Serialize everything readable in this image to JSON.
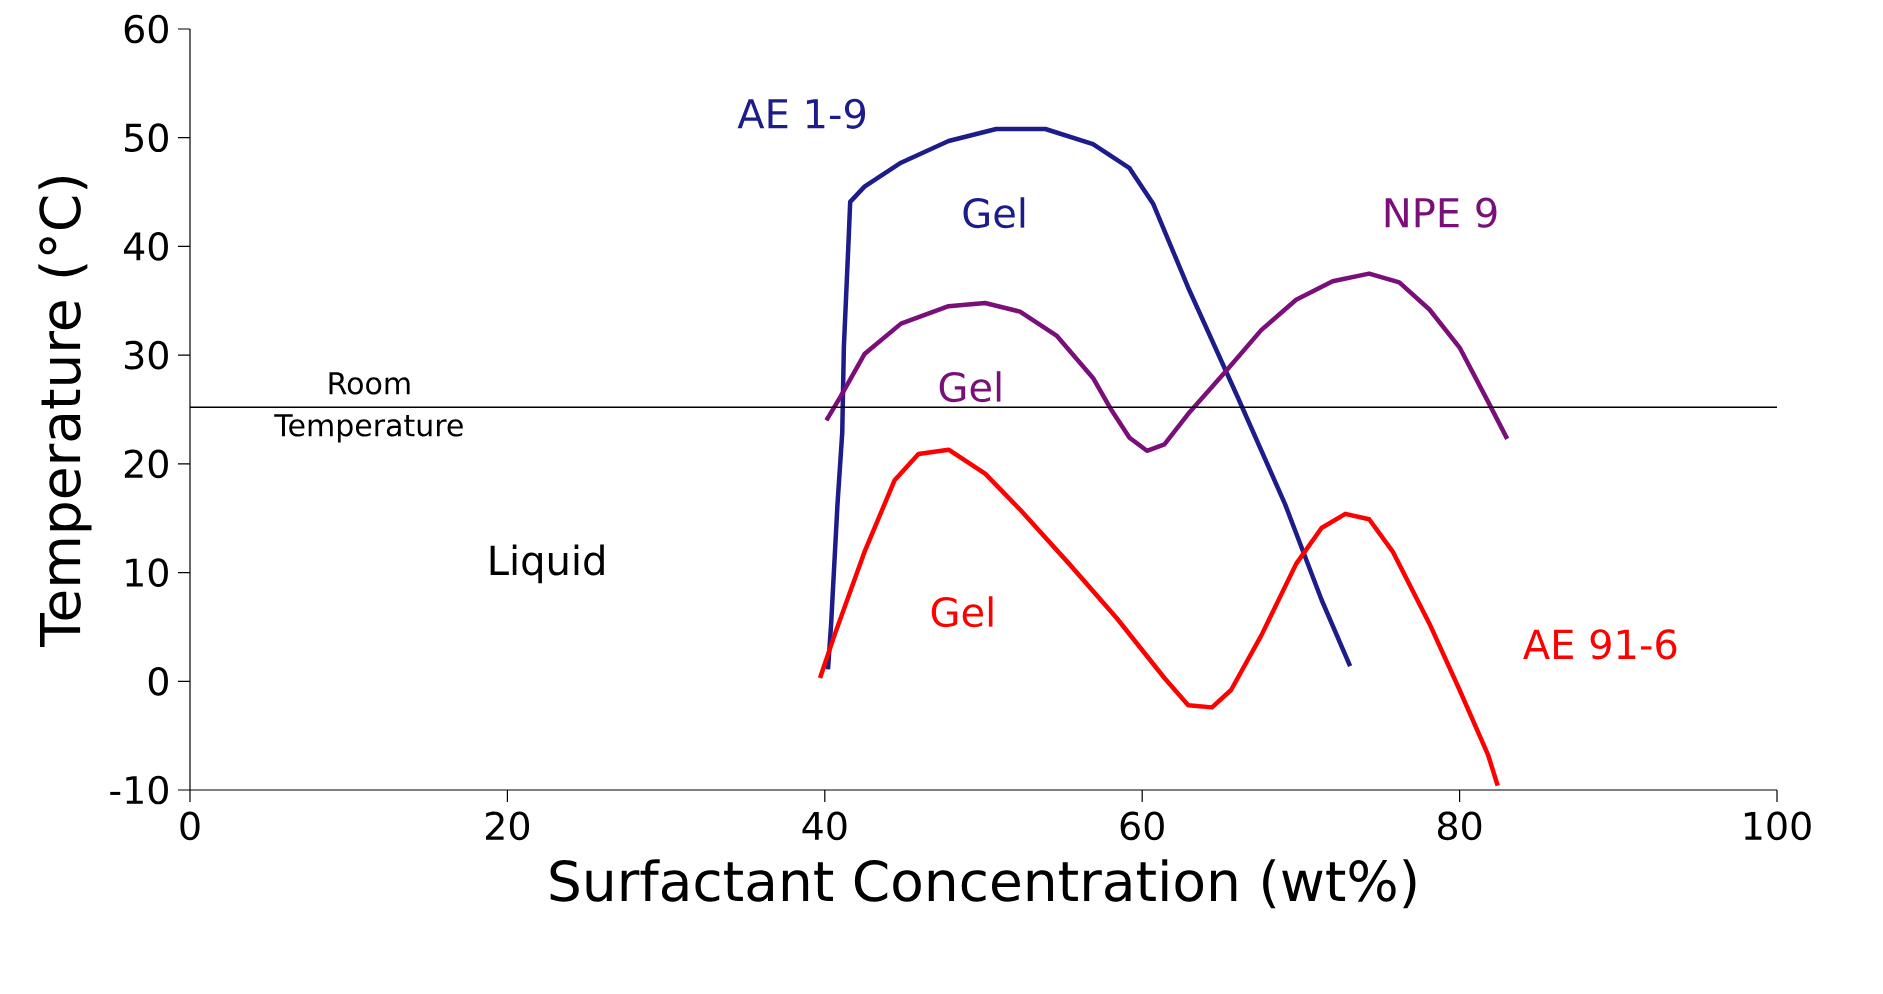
{
  "chart_data": {
    "type": "line",
    "xlabel": "Surfactant Concentration (wt%)",
    "ylabel": "Temperature (°C)",
    "xlim": [
      0,
      100
    ],
    "ylim": [
      -10,
      60
    ],
    "xticks": [
      0,
      20,
      40,
      60,
      80,
      100
    ],
    "yticks": [
      -10,
      0,
      10,
      20,
      30,
      40,
      50,
      60
    ],
    "grid": false,
    "marker": "none",
    "line_style": "solid",
    "series": [
      {
        "name": "AE 1-9",
        "color": "#1c1c8a",
        "x": [
          40.2,
          40.4,
          40.8,
          41.1,
          41.2,
          41.5,
          41.6,
          42.5,
          44.8,
          47.8,
          50.8,
          53.9,
          56.9,
          59.2,
          60.7,
          62.9,
          66.0,
          69.0,
          71.3,
          73.1
        ],
        "values": [
          1.1,
          5.3,
          16.3,
          22.9,
          30.7,
          40.6,
          44.1,
          45.5,
          47.7,
          49.7,
          50.8,
          50.8,
          49.4,
          47.2,
          43.9,
          36.2,
          26.2,
          16.3,
          7.5,
          1.4
        ]
      },
      {
        "name": "NPE 9",
        "color": "#7a0f7a",
        "x": [
          40.1,
          41.0,
          42.5,
          44.8,
          47.8,
          50.1,
          52.3,
          54.6,
          56.9,
          58.0,
          59.2,
          60.3,
          61.4,
          62.9,
          65.2,
          67.5,
          69.7,
          72.0,
          74.3,
          76.2,
          78.1,
          80.0,
          81.8,
          83.0
        ],
        "values": [
          24.0,
          26.2,
          30.1,
          32.9,
          34.5,
          34.8,
          34.0,
          31.8,
          27.9,
          25.1,
          22.4,
          21.2,
          21.8,
          24.6,
          28.4,
          32.3,
          35.1,
          36.8,
          37.5,
          36.7,
          34.2,
          30.7,
          25.7,
          22.3
        ]
      },
      {
        "name": "AE 91-6",
        "color": "#ff0000",
        "x": [
          39.7,
          40.6,
          42.5,
          44.4,
          45.9,
          47.8,
          50.1,
          52.3,
          55.4,
          58.4,
          61.4,
          62.9,
          64.4,
          65.6,
          67.5,
          69.7,
          71.3,
          72.8,
          74.3,
          75.8,
          78.1,
          80.0,
          81.8,
          82.4
        ],
        "values": [
          0.3,
          4.2,
          11.9,
          18.5,
          20.9,
          21.3,
          19.1,
          15.8,
          10.8,
          5.8,
          0.3,
          -2.2,
          -2.4,
          -0.8,
          4.2,
          10.8,
          14.1,
          15.4,
          14.9,
          11.9,
          5.3,
          -0.8,
          -6.8,
          -9.6
        ]
      }
    ],
    "ref_lines": [
      {
        "axis": "y",
        "value": 25.2,
        "label": "Room Temperature",
        "color": "#000000"
      }
    ],
    "annotations": [
      "Gel",
      "Gel",
      "Gel",
      "Liquid"
    ]
  }
}
